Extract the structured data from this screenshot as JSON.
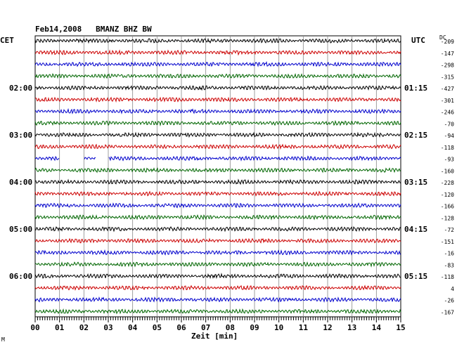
{
  "chart_data": {
    "type": "line",
    "title": "Feb14,2008   BMANZ BHZ BW",
    "left_zone": "CET",
    "right_zone": "UTC",
    "dc_label": "DC",
    "xlabel": "Zeit [min]",
    "x_ticks": [
      "00",
      "01",
      "02",
      "03",
      "04",
      "05",
      "06",
      "07",
      "08",
      "09",
      "10",
      "11",
      "12",
      "13",
      "14",
      "15"
    ],
    "xlim": [
      0,
      15
    ],
    "left_hour_labels": [
      {
        "row": 4,
        "label": "02:00"
      },
      {
        "row": 8,
        "label": "03:00"
      },
      {
        "row": 12,
        "label": "04:00"
      },
      {
        "row": 16,
        "label": "05:00"
      },
      {
        "row": 20,
        "label": "06:00"
      }
    ],
    "right_hour_labels": [
      {
        "row": 4,
        "label": "01:15"
      },
      {
        "row": 8,
        "label": "02:15"
      },
      {
        "row": 12,
        "label": "03:15"
      },
      {
        "row": 16,
        "label": "04:15"
      },
      {
        "row": 20,
        "label": "05:15"
      }
    ],
    "trace_colors": [
      "#000000",
      "#cc0000",
      "#0000cc",
      "#006600"
    ],
    "dc_offsets": [
      -209,
      -147,
      -298,
      -315,
      -427,
      -301,
      -246,
      -70,
      -94,
      -118,
      -93,
      -160,
      -228,
      -120,
      -166,
      -128,
      -72,
      -151,
      -16,
      -83,
      -118,
      4,
      -26,
      -167
    ],
    "gap_trace": {
      "row": 10,
      "gaps_min": [
        [
          1.0,
          2.0
        ],
        [
          2.5,
          3.0
        ]
      ]
    },
    "grid": true,
    "corner_mark": "M"
  }
}
